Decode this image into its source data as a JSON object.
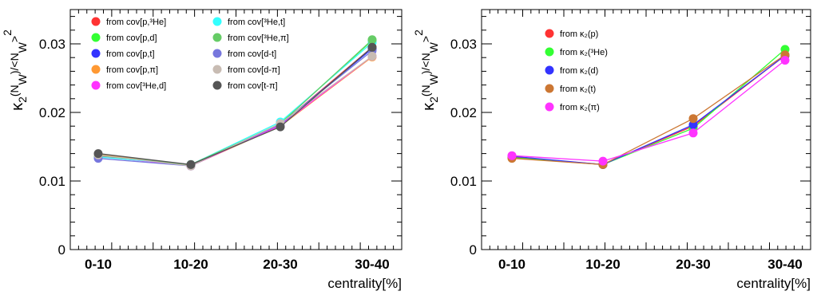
{
  "chart_data": [
    {
      "type": "line",
      "categories": [
        "0-10",
        "10-20",
        "20-30",
        "30-40"
      ],
      "xlabel": "centrality[%]",
      "ylabel": "κ₂(N_W)/<N_W>²",
      "ylim": [
        0,
        0.035
      ],
      "yticks": [
        "0",
        "0.01",
        "0.02",
        "0.03"
      ],
      "legend_position": "top-left, two columns",
      "grid": false,
      "series": [
        {
          "name": "from cov[p,³He]",
          "color": "#ff3333",
          "values": [
            0.0138,
            0.0123,
            0.0182,
            0.0295
          ]
        },
        {
          "name": "from cov[p,d]",
          "color": "#33ff33",
          "values": [
            0.0138,
            0.0123,
            0.0184,
            0.0305
          ]
        },
        {
          "name": "from cov[p,t]",
          "color": "#3333ff",
          "values": [
            0.0137,
            0.0122,
            0.0182,
            0.0293
          ]
        },
        {
          "name": "from cov[p,π]",
          "color": "#ff9933",
          "values": [
            0.0139,
            0.0122,
            0.018,
            0.0281
          ]
        },
        {
          "name": "from cov[³He,d]",
          "color": "#ff33ff",
          "values": [
            0.0136,
            0.0122,
            0.0181,
            0.0282
          ]
        },
        {
          "name": "from cov[³He,t]",
          "color": "#33ffff",
          "values": [
            0.0135,
            0.0124,
            0.0186,
            0.0302
          ]
        },
        {
          "name": "from cov[³He,π]",
          "color": "#66cc66",
          "values": [
            0.0137,
            0.0124,
            0.0183,
            0.0306
          ]
        },
        {
          "name": "from cov[d-t]",
          "color": "#7777dd",
          "values": [
            0.0133,
            0.0122,
            0.0183,
            0.029
          ]
        },
        {
          "name": "from cov[d-π]",
          "color": "#c8bcb3",
          "values": [
            0.0138,
            0.0122,
            0.0184,
            0.0282
          ]
        },
        {
          "name": "from cov[t-π]",
          "color": "#555555",
          "values": [
            0.014,
            0.0124,
            0.0179,
            0.0295
          ]
        }
      ]
    },
    {
      "type": "line",
      "categories": [
        "0-10",
        "10-20",
        "20-30",
        "30-40"
      ],
      "xlabel": "centrality[%]",
      "ylabel": "κ₂(N_W)/<N_W>²",
      "ylim": [
        0,
        0.035
      ],
      "yticks": [
        "0",
        "0.01",
        "0.02",
        "0.03"
      ],
      "legend_position": "top-center",
      "grid": false,
      "series": [
        {
          "name": "from κ₂(p)",
          "color": "#ff3333",
          "values": [
            0.0135,
            0.0124,
            0.018,
            0.0283
          ]
        },
        {
          "name": "from κ₂(³He)",
          "color": "#33ff33",
          "values": [
            0.0134,
            0.0124,
            0.0177,
            0.0292
          ]
        },
        {
          "name": "from κ₂(d)",
          "color": "#3333ff",
          "values": [
            0.0136,
            0.0124,
            0.0182,
            0.0283
          ]
        },
        {
          "name": "from κ₂(t)",
          "color": "#cc7733",
          "values": [
            0.0133,
            0.0124,
            0.0191,
            0.0284
          ]
        },
        {
          "name": "from κ₂(π)",
          "color": "#ff33ff",
          "values": [
            0.0137,
            0.0129,
            0.017,
            0.0276
          ]
        }
      ]
    }
  ]
}
